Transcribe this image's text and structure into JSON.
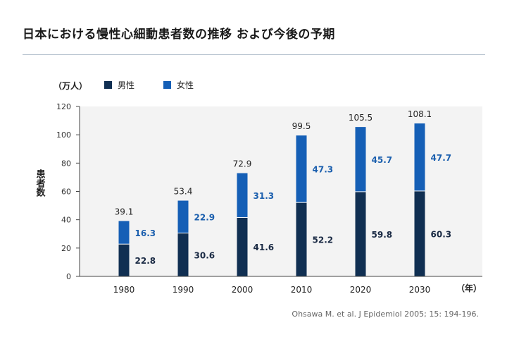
{
  "title": "日本における慢性心細動患者数の推移 および今後の予期",
  "source": "Ohsawa M. et al. J Epidemiol 2005; 15: 194-196.",
  "colors": {
    "male": "#102f52",
    "female": "#155fb6",
    "rule": "#b7c3cf",
    "plot_bg": "#f3f3f3",
    "male_label": "#1a2a44",
    "female_label": "#1b5fae"
  },
  "chart_data": {
    "type": "bar",
    "stacked": true,
    "categories": [
      "1980",
      "1990",
      "2000",
      "2010",
      "2020",
      "2030"
    ],
    "series": [
      {
        "name": "男性",
        "values": [
          22.8,
          30.6,
          41.6,
          52.2,
          59.8,
          60.3
        ]
      },
      {
        "name": "女性",
        "values": [
          16.3,
          22.9,
          31.3,
          47.3,
          45.7,
          47.7
        ]
      }
    ],
    "totals": [
      39.1,
      53.4,
      72.9,
      99.5,
      105.5,
      108.1
    ],
    "yunit": "（万人）",
    "ylabel": "患者数",
    "xunit": "（年）",
    "ylim": [
      0,
      120
    ],
    "yticks": [
      0,
      20,
      40,
      60,
      80,
      100,
      120
    ],
    "legend_position": "top-left",
    "grid": false
  }
}
